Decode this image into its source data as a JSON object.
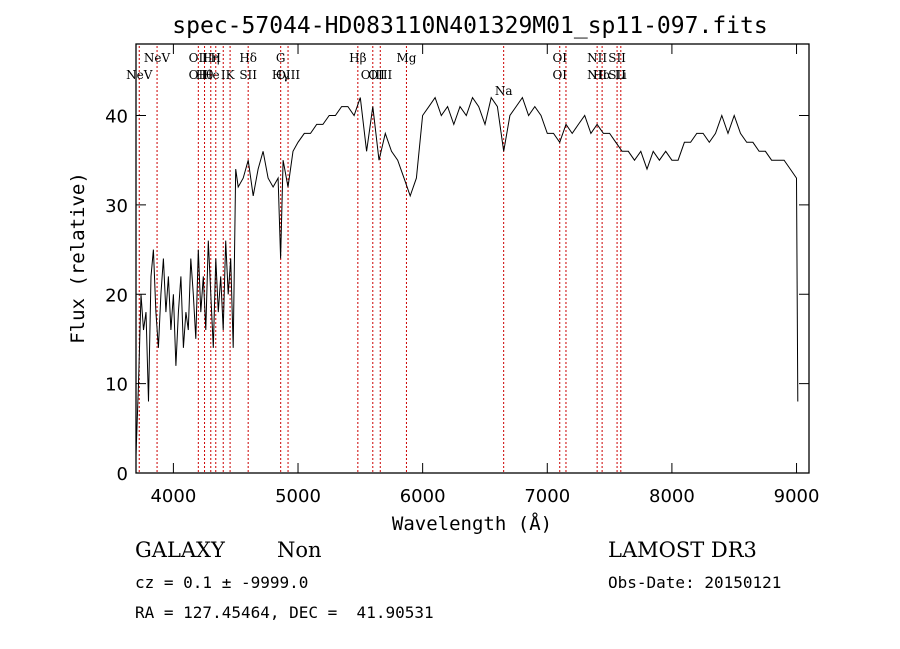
{
  "chart_data": {
    "type": "line",
    "title": "spec-57044-HD083110N401329M01_sp11-097.fits",
    "xlabel": "Wavelength (Å)",
    "ylabel": "Flux (relative)",
    "xlim": [
      3700,
      9100
    ],
    "ylim": [
      0,
      48
    ],
    "xticks": [
      4000,
      5000,
      6000,
      7000,
      8000,
      9000
    ],
    "yticks": [
      0,
      10,
      20,
      30,
      40
    ],
    "grid": false,
    "legend": "none",
    "line_color": "#000000",
    "marker_color": "#cc0000",
    "series": [
      {
        "x": [
          3700,
          3720,
          3740,
          3760,
          3780,
          3800,
          3820,
          3840,
          3860,
          3880,
          3900,
          3920,
          3940,
          3960,
          3980,
          4000,
          4020,
          4040,
          4060,
          4080,
          4100,
          4120,
          4140,
          4160,
          4180,
          4200,
          4220,
          4240,
          4260,
          4280,
          4300,
          4320,
          4340,
          4360,
          4380,
          4400,
          4420,
          4440,
          4460,
          4480,
          4500,
          4520,
          4560,
          4600,
          4640,
          4680,
          4720,
          4760,
          4800,
          4840,
          4860,
          4880,
          4920,
          4960,
          5000,
          5050,
          5100,
          5150,
          5200,
          5250,
          5300,
          5350,
          5400,
          5450,
          5500,
          5550,
          5600,
          5650,
          5700,
          5750,
          5800,
          5850,
          5900,
          5950,
          6000,
          6050,
          6100,
          6150,
          6200,
          6250,
          6300,
          6350,
          6400,
          6450,
          6500,
          6550,
          6600,
          6650,
          6700,
          6750,
          6800,
          6850,
          6900,
          6950,
          7000,
          7050,
          7100,
          7150,
          7200,
          7250,
          7300,
          7350,
          7400,
          7450,
          7500,
          7550,
          7600,
          7650,
          7700,
          7750,
          7800,
          7850,
          7900,
          7950,
          8000,
          8050,
          8100,
          8150,
          8200,
          8250,
          8300,
          8350,
          8400,
          8450,
          8500,
          8550,
          8600,
          8650,
          8700,
          8750,
          8800,
          8850,
          8900,
          8950,
          9000,
          9010
        ],
        "y": [
          2,
          10,
          20,
          16,
          18,
          8,
          22,
          25,
          18,
          14,
          20,
          24,
          18,
          22,
          16,
          20,
          12,
          18,
          22,
          14,
          18,
          16,
          24,
          20,
          15,
          25,
          18,
          22,
          16,
          26,
          20,
          14,
          24,
          18,
          22,
          16,
          26,
          20,
          24,
          14,
          34,
          32,
          33,
          35,
          31,
          34,
          36,
          33,
          32,
          33,
          24,
          35,
          32,
          36,
          37,
          38,
          38,
          39,
          39,
          40,
          40,
          41,
          41,
          40,
          42,
          36,
          41,
          35,
          38,
          36,
          35,
          33,
          31,
          33,
          40,
          41,
          42,
          40,
          41,
          39,
          41,
          40,
          42,
          41,
          39,
          42,
          41,
          36,
          40,
          41,
          42,
          40,
          41,
          40,
          38,
          38,
          37,
          39,
          38,
          39,
          40,
          38,
          39,
          38,
          38,
          37,
          36,
          36,
          35,
          36,
          34,
          36,
          35,
          36,
          35,
          35,
          37,
          37,
          38,
          38,
          37,
          38,
          40,
          38,
          40,
          38,
          37,
          37,
          36,
          36,
          35,
          35,
          35,
          34,
          33,
          8
        ]
      }
    ],
    "line_markers": [
      {
        "x": 3726,
        "labels": [
          "",
          "NeV"
        ]
      },
      {
        "x": 3869,
        "labels": [
          "NeV",
          ""
        ]
      },
      {
        "x": 4200,
        "labels": [
          "OII",
          "OII"
        ]
      },
      {
        "x": 4250,
        "labels": [
          "",
          "Hθ"
        ]
      },
      {
        "x": 4300,
        "labels": [
          "Hη",
          "He"
        ]
      },
      {
        "x": 4340,
        "labels": [
          "H",
          ""
        ]
      },
      {
        "x": 4400,
        "labels": [
          "",
          "I"
        ]
      },
      {
        "x": 4455,
        "labels": [
          "",
          "K"
        ]
      },
      {
        "x": 4600,
        "labels": [
          "Hδ",
          "SII"
        ]
      },
      {
        "x": 4861,
        "labels": [
          "G",
          "Hγ"
        ]
      },
      {
        "x": 4920,
        "labels": [
          "",
          "OIII"
        ]
      },
      {
        "x": 5480,
        "labels": [
          "Hβ",
          ""
        ]
      },
      {
        "x": 5600,
        "labels": [
          "",
          "OIII"
        ]
      },
      {
        "x": 5660,
        "labels": [
          "",
          "OIII"
        ]
      },
      {
        "x": 5870,
        "labels": [
          "Mg",
          ""
        ]
      },
      {
        "x": 6650,
        "labels": [
          "",
          "Na"
        ]
      },
      {
        "x": 7100,
        "labels": [
          "OI",
          "OI"
        ]
      },
      {
        "x": 7150,
        "labels": [
          "",
          ""
        ]
      },
      {
        "x": 7400,
        "labels": [
          "NII",
          "NII"
        ]
      },
      {
        "x": 7440,
        "labels": [
          "",
          "Hα"
        ]
      },
      {
        "x": 7560,
        "labels": [
          "SII",
          "SII"
        ]
      },
      {
        "x": 7590,
        "labels": [
          "",
          "Li"
        ]
      }
    ]
  },
  "info": {
    "class": "GALAXY",
    "subclass": "Non",
    "survey": "LAMOST DR3",
    "cz": "cz = 0.1 ± -9999.0",
    "obs_date": "Obs-Date: 20150121",
    "radec": "RA = 127.45464, DEC =  41.90531"
  }
}
